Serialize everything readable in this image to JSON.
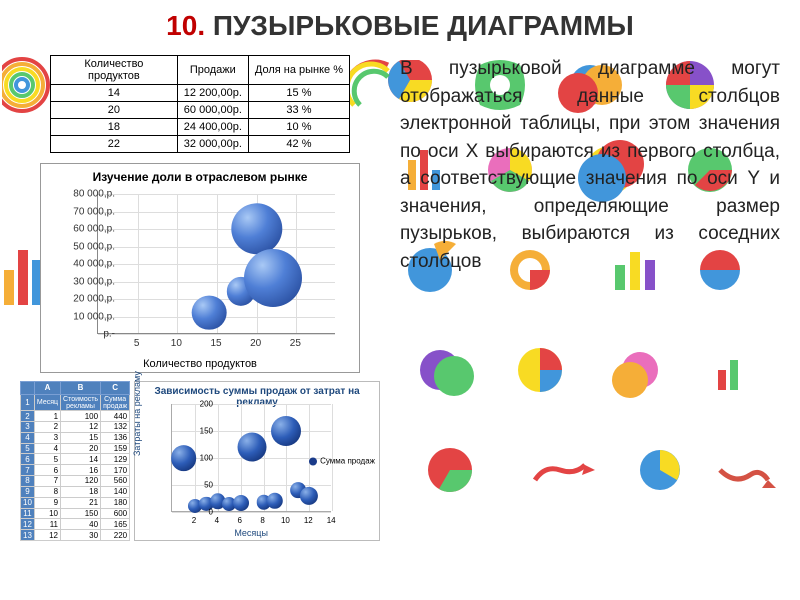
{
  "title": {
    "num": "10.",
    "text": "ПУЗЫРЬКОВЫЕ ДИАГРАММЫ",
    "num_color": "#c00000",
    "text_color": "#333333",
    "fontsize": 28
  },
  "body_text": "В пузырьковой диаграмме могут отображаться данные столбцов электронной таблицы, при этом значения по оси X выбираются из первого столбца, а соответствующие значения по оси Y и значения, определяющие размер пузырьков, выбираются из соседних столбцов",
  "body_style": {
    "fontsize": 19,
    "color": "#222222",
    "align": "justify"
  },
  "table": {
    "columns": [
      "Количество продуктов",
      "Продажи",
      "Доля на рынке %"
    ],
    "rows": [
      [
        "14",
        "12 200,00р.",
        "15 %"
      ],
      [
        "20",
        "60 000,00р.",
        "33 %"
      ],
      [
        "18",
        "24 400,00р.",
        "10 %"
      ],
      [
        "22",
        "32 000,00р.",
        "42 %"
      ]
    ],
    "border_color": "#000000",
    "fontsize": 11
  },
  "chart1": {
    "type": "bubble",
    "title": "Изучение доли в отраслевом рынке",
    "title_fontsize": 12,
    "xlabel": "Количество продуктов",
    "label_fontsize": 11,
    "xlim": [
      0,
      30
    ],
    "xticks": [
      5,
      10,
      15,
      20,
      25
    ],
    "ylim": [
      0,
      80000
    ],
    "yticks": [
      0,
      10000,
      20000,
      30000,
      40000,
      50000,
      60000,
      70000,
      80000
    ],
    "ytick_format": "р.",
    "grid_color": "#dddddd",
    "axis_color": "#888888",
    "bubble_fill": "radial #a9c9f5 #4f7fd6 #1a3b8a",
    "data": [
      {
        "x": 14,
        "y": 12200,
        "size": 15
      },
      {
        "x": 20,
        "y": 60000,
        "size": 33
      },
      {
        "x": 18,
        "y": 24400,
        "size": 10
      },
      {
        "x": 22,
        "y": 32000,
        "size": 42
      }
    ]
  },
  "spreadsheet": {
    "col_letters": [
      "A",
      "B",
      "C"
    ],
    "headers": [
      "Месяц",
      "Стоимость рекламы",
      "Сумма продаж"
    ],
    "rows": [
      [
        "1",
        "100",
        "440"
      ],
      [
        "2",
        "12",
        "132"
      ],
      [
        "3",
        "15",
        "136"
      ],
      [
        "4",
        "20",
        "159"
      ],
      [
        "5",
        "14",
        "129"
      ],
      [
        "6",
        "16",
        "170"
      ],
      [
        "7",
        "120",
        "560"
      ],
      [
        "8",
        "18",
        "140"
      ],
      [
        "9",
        "21",
        "180"
      ],
      [
        "10",
        "150",
        "600"
      ],
      [
        "11",
        "40",
        "165"
      ],
      [
        "12",
        "30",
        "220"
      ]
    ],
    "header_bg": "#4f81bd",
    "header_color": "#ffffff",
    "fontsize": 8
  },
  "chart2": {
    "type": "bubble",
    "title": "Зависимость суммы продаж от затрат на рекламу",
    "title_fontsize": 10,
    "title_color": "#1f497d",
    "xlabel": "Месяцы",
    "ylabel": "Затраты на рекламу",
    "label_fontsize": 9,
    "label_color": "#1f497d",
    "xlim": [
      0,
      14
    ],
    "xticks": [
      2,
      4,
      6,
      8,
      10,
      12,
      14
    ],
    "ylim": [
      0,
      200
    ],
    "yticks": [
      0,
      50,
      100,
      150,
      200
    ],
    "grid_color": "#e6e6e6",
    "legend": "Сумма продаж",
    "legend_color": "#1a3b8a",
    "bubble_fill": "radial #8ab0e8 #2d5db8 #0a2360",
    "data": [
      {
        "x": 1,
        "y": 100,
        "s": 440
      },
      {
        "x": 2,
        "y": 12,
        "s": 132
      },
      {
        "x": 3,
        "y": 15,
        "s": 136
      },
      {
        "x": 4,
        "y": 20,
        "s": 159
      },
      {
        "x": 5,
        "y": 14,
        "s": 129
      },
      {
        "x": 6,
        "y": 16,
        "s": 170
      },
      {
        "x": 7,
        "y": 120,
        "s": 560
      },
      {
        "x": 8,
        "y": 18,
        "s": 140
      },
      {
        "x": 9,
        "y": 21,
        "s": 180
      },
      {
        "x": 10,
        "y": 150,
        "s": 600
      },
      {
        "x": 11,
        "y": 40,
        "s": 165
      },
      {
        "x": 12,
        "y": 30,
        "s": 220
      }
    ]
  },
  "decorative_icons": {
    "note": "colorful 3D chart/pie icons scattered as background",
    "palette": [
      "#e03030",
      "#f5a623",
      "#f8d80c",
      "#46c35f",
      "#2d8bd8",
      "#7b3fc4",
      "#e85fb5"
    ]
  }
}
